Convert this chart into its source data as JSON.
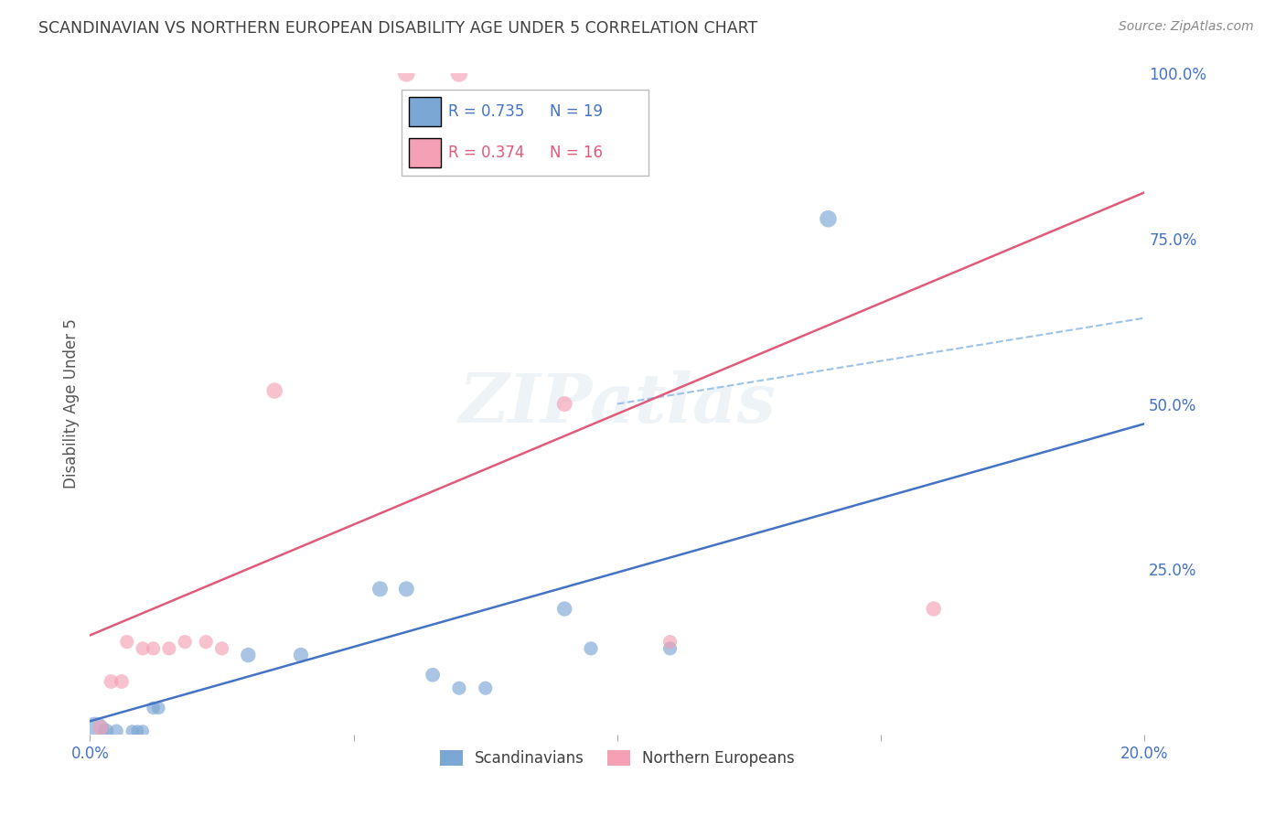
{
  "title": "SCANDINAVIAN VS NORTHERN EUROPEAN DISABILITY AGE UNDER 5 CORRELATION CHART",
  "source": "Source: ZipAtlas.com",
  "ylabel": "Disability Age Under 5",
  "xlim": [
    0.0,
    0.2
  ],
  "ylim": [
    0.0,
    1.0
  ],
  "xticks": [
    0.0,
    0.05,
    0.1,
    0.15,
    0.2
  ],
  "ytick_labels": [
    "25.0%",
    "50.0%",
    "75.0%",
    "100.0%"
  ],
  "yticks": [
    0.25,
    0.5,
    0.75,
    1.0
  ],
  "xtick_labels": [
    "0.0%",
    "",
    "",
    "",
    "20.0%"
  ],
  "scandinavian_color": "#7ba7d4",
  "northern_color": "#f4a0b5",
  "blue_line_color": "#4472c4",
  "pink_line_color": "#e05a7a",
  "dashed_line_color": "#9dc3e6",
  "R_scand": 0.735,
  "N_scand": 19,
  "R_north": 0.374,
  "N_north": 16,
  "legend_label_scand": "Scandinavians",
  "legend_label_north": "Northern Europeans",
  "watermark": "ZIPatlas",
  "background_color": "#ffffff",
  "grid_color": "#d0d0d0",
  "axis_label_color": "#4472c4",
  "title_color": "#404040",
  "scandinavian_points": [
    [
      0.001,
      0.005
    ],
    [
      0.003,
      0.005
    ],
    [
      0.005,
      0.005
    ],
    [
      0.008,
      0.005
    ],
    [
      0.009,
      0.005
    ],
    [
      0.01,
      0.005
    ],
    [
      0.012,
      0.04
    ],
    [
      0.013,
      0.04
    ],
    [
      0.03,
      0.12
    ],
    [
      0.04,
      0.12
    ],
    [
      0.055,
      0.22
    ],
    [
      0.06,
      0.22
    ],
    [
      0.065,
      0.09
    ],
    [
      0.07,
      0.07
    ],
    [
      0.075,
      0.07
    ],
    [
      0.09,
      0.19
    ],
    [
      0.095,
      0.13
    ],
    [
      0.11,
      0.13
    ],
    [
      0.14,
      0.78
    ]
  ],
  "northern_points": [
    [
      0.002,
      0.01
    ],
    [
      0.004,
      0.08
    ],
    [
      0.006,
      0.08
    ],
    [
      0.01,
      0.13
    ],
    [
      0.012,
      0.13
    ],
    [
      0.015,
      0.13
    ],
    [
      0.018,
      0.14
    ],
    [
      0.025,
      0.13
    ],
    [
      0.035,
      0.52
    ],
    [
      0.06,
      1.0
    ],
    [
      0.07,
      1.0
    ],
    [
      0.09,
      0.5
    ],
    [
      0.11,
      0.14
    ],
    [
      0.16,
      0.19
    ],
    [
      0.007,
      0.14
    ],
    [
      0.022,
      0.14
    ]
  ],
  "scand_line": {
    "x0": 0.0,
    "y0": 0.02,
    "x1": 0.2,
    "y1": 0.47
  },
  "pink_line": {
    "x0": 0.0,
    "y0": 0.15,
    "x1": 0.2,
    "y1": 0.82
  },
  "dash_line": {
    "x0": 0.1,
    "y0": 0.5,
    "x1": 0.2,
    "y1": 0.63
  }
}
